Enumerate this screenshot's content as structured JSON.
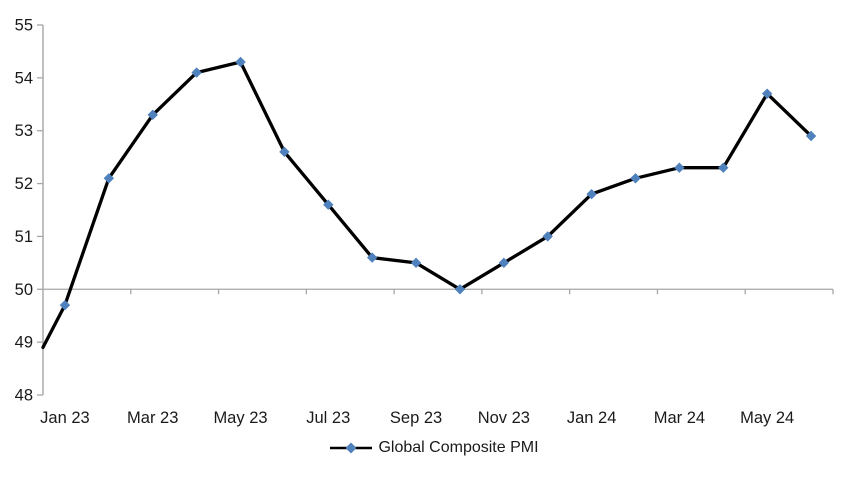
{
  "chart_data": {
    "type": "line",
    "title": "",
    "categories": [
      "Jan 23",
      "Feb 23",
      "Mar 23",
      "Apr 23",
      "May 23",
      "Jun 23",
      "Jul 23",
      "Aug 23",
      "Sep 23",
      "Oct 23",
      "Nov 23",
      "Dec 23",
      "Jan 24",
      "Feb 24",
      "Mar 24",
      "Apr 24",
      "May 24",
      "Jun 24"
    ],
    "series": [
      {
        "name": "Global Composite PMI",
        "values": [
          49.7,
          52.1,
          53.3,
          54.1,
          54.3,
          52.6,
          51.6,
          50.6,
          50.5,
          50.0,
          50.5,
          51.0,
          51.8,
          52.1,
          52.3,
          52.3,
          53.7,
          52.9
        ],
        "leading_edge_value": 48.9,
        "line_color": "#000000",
        "marker": "diamond",
        "marker_color": "#4F81BD"
      }
    ],
    "xlabel": "",
    "ylabel": "",
    "ylim": [
      48,
      55
    ],
    "y_ticks": [
      48,
      49,
      50,
      51,
      52,
      53,
      54,
      55
    ],
    "x_tick_labels": [
      "Jan 23",
      "Mar 23",
      "May 23",
      "Jul 23",
      "Sep 23",
      "Nov 23",
      "Jan 24",
      "Mar 24",
      "May 24"
    ],
    "x_label_every_n_months": 2,
    "baseline_value": 50,
    "grid": "none (single horizontal category axis line at value 50 with tick marks every 2 months)",
    "legend_position": "bottom-center",
    "axis_color": "#A6A6A6",
    "text_color": "#1a1a1a"
  },
  "legend": {
    "label": "Global Composite PMI"
  }
}
